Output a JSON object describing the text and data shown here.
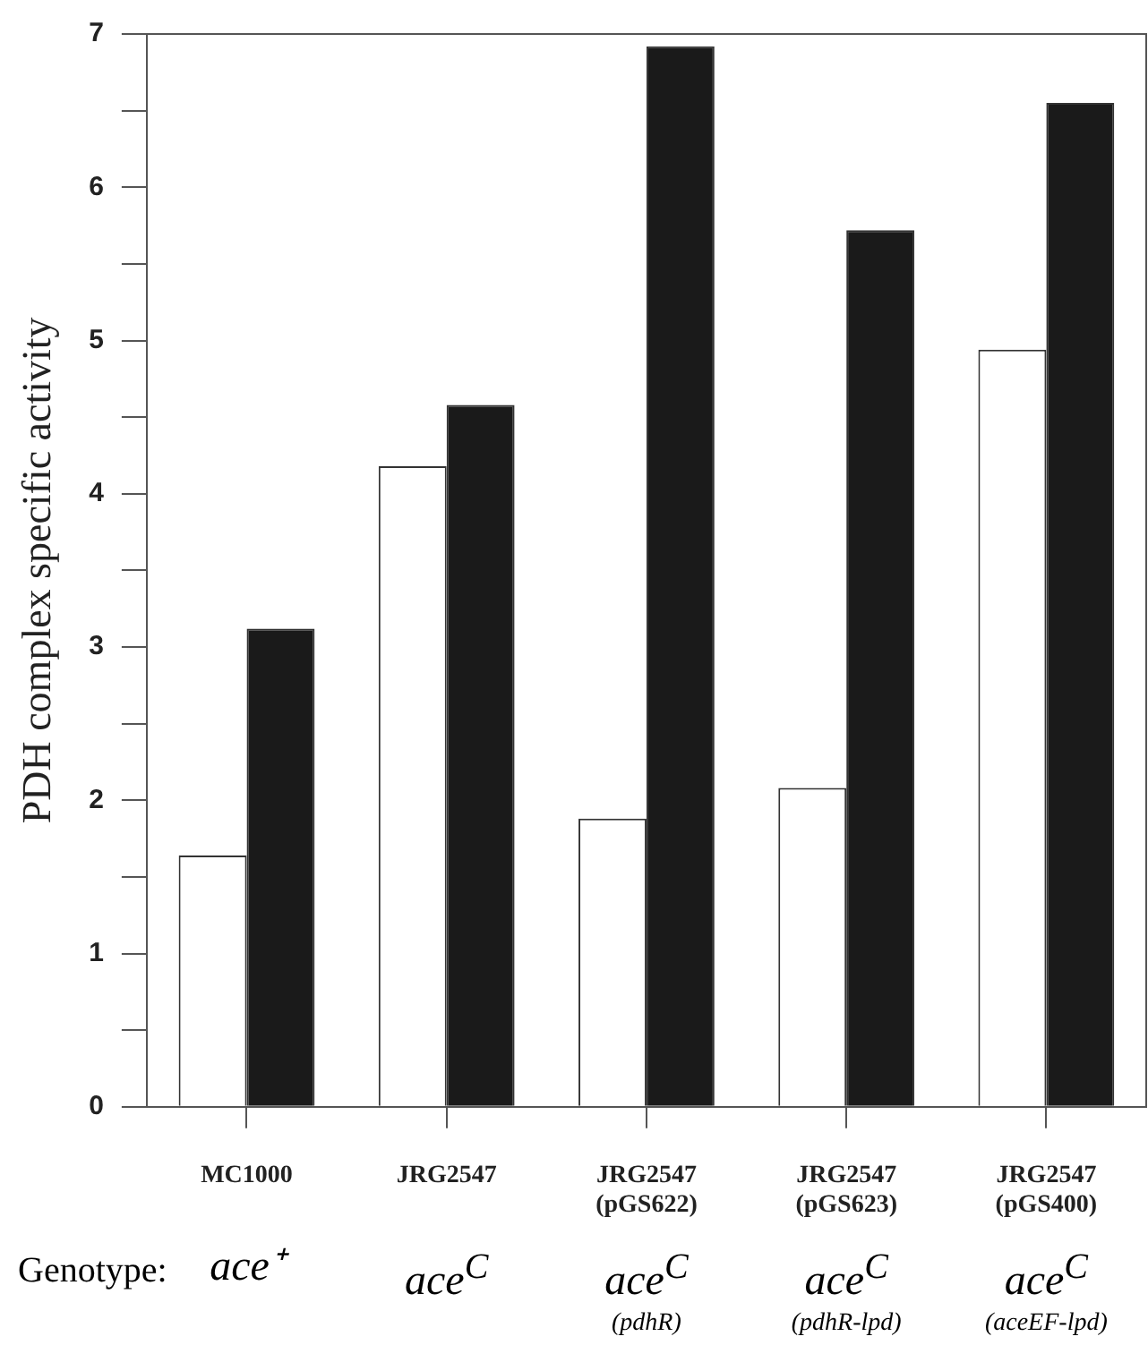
{
  "chart_data": {
    "type": "bar",
    "ylabel": "PDH complex specific activity",
    "categories": [
      "MC1000",
      "JRG2547",
      "JRG2547 (pGS622)",
      "JRG2547 (pGS623)",
      "JRG2547 (pGS400)"
    ],
    "series": [
      {
        "color": "#ffffff",
        "values": [
          1.64,
          4.18,
          1.88,
          2.08,
          4.94
        ]
      },
      {
        "color": "#1a1a1a",
        "values": [
          3.12,
          4.58,
          6.92,
          5.72,
          6.55
        ]
      }
    ],
    "ylim": [
      0,
      7
    ],
    "yticks": [
      0,
      {
        "value": 0.5,
        "label": null
      },
      1,
      {
        "value": 1.5,
        "label": null
      },
      2,
      {
        "value": 2.5,
        "label": null
      },
      3,
      {
        "value": 3.5,
        "label": null
      },
      4,
      {
        "value": 4.5,
        "label": null
      },
      5,
      {
        "value": 5.5,
        "label": null
      },
      6,
      {
        "value": 6.5,
        "label": null
      },
      7
    ],
    "grid": false,
    "legend": false,
    "annotations": [
      "Genotype:",
      "ace⁺",
      "ace$^{C}$",
      "ace$^{C}$ (pdhR)",
      "ace$^{C}$ (pdhR-lpd)",
      "ace$^{C}$ (aceEF-lpd)"
    ]
  }
}
